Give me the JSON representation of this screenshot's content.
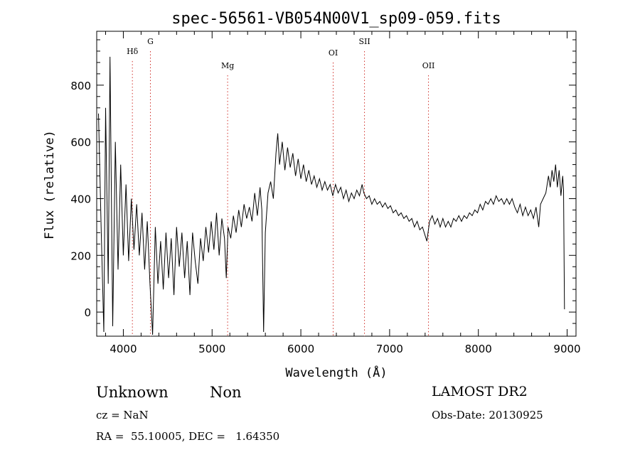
{
  "chart_data": {
    "type": "line",
    "title": "spec-56561-VB054N00V1_sp09-059.fits",
    "xlabel": "Wavelength (Å)",
    "ylabel": "Flux (relative)",
    "xlim": [
      3700,
      9100
    ],
    "ylim": [
      -85,
      990
    ],
    "xticks": [
      4000,
      5000,
      6000,
      7000,
      8000,
      9000
    ],
    "yticks": [
      0,
      200,
      400,
      600,
      800
    ],
    "xtick_labels": [
      "4000",
      "5000",
      "6000",
      "7000",
      "8000",
      "9000"
    ],
    "ytick_labels": [
      "0",
      "200",
      "400",
      "600",
      "800"
    ],
    "lines": [
      {
        "label": "Hδ",
        "wavelength": 4102,
        "label_flux": 910
      },
      {
        "label": "G",
        "wavelength": 4305,
        "label_flux": 945
      },
      {
        "label": "Mg",
        "wavelength": 5175,
        "label_flux": 860
      },
      {
        "label": "OI",
        "wavelength": 6364,
        "label_flux": 905
      },
      {
        "label": "SII",
        "wavelength": 6717,
        "label_flux": 945
      },
      {
        "label": "OII",
        "wavelength": 7438,
        "label_flux": 860
      }
    ],
    "series": [
      {
        "values": [
          [
            3720,
            700
          ],
          [
            3750,
            300
          ],
          [
            3780,
            -70
          ],
          [
            3800,
            720
          ],
          [
            3830,
            100
          ],
          [
            3850,
            900
          ],
          [
            3880,
            -50
          ],
          [
            3910,
            600
          ],
          [
            3940,
            150
          ],
          [
            3970,
            520
          ],
          [
            4000,
            200
          ],
          [
            4030,
            450
          ],
          [
            4060,
            180
          ],
          [
            4090,
            400
          ],
          [
            4120,
            220
          ],
          [
            4150,
            380
          ],
          [
            4180,
            200
          ],
          [
            4210,
            350
          ],
          [
            4240,
            150
          ],
          [
            4270,
            320
          ],
          [
            4300,
            100
          ],
          [
            4330,
            -80
          ],
          [
            4360,
            300
          ],
          [
            4390,
            100
          ],
          [
            4420,
            250
          ],
          [
            4450,
            80
          ],
          [
            4480,
            280
          ],
          [
            4510,
            120
          ],
          [
            4540,
            260
          ],
          [
            4570,
            60
          ],
          [
            4600,
            300
          ],
          [
            4630,
            160
          ],
          [
            4660,
            280
          ],
          [
            4690,
            120
          ],
          [
            4720,
            250
          ],
          [
            4750,
            60
          ],
          [
            4780,
            280
          ],
          [
            4810,
            180
          ],
          [
            4840,
            100
          ],
          [
            4870,
            260
          ],
          [
            4900,
            180
          ],
          [
            4930,
            300
          ],
          [
            4960,
            210
          ],
          [
            4990,
            320
          ],
          [
            5020,
            220
          ],
          [
            5050,
            350
          ],
          [
            5080,
            200
          ],
          [
            5110,
            330
          ],
          [
            5140,
            260
          ],
          [
            5160,
            120
          ],
          [
            5180,
            300
          ],
          [
            5210,
            260
          ],
          [
            5240,
            340
          ],
          [
            5270,
            280
          ],
          [
            5300,
            360
          ],
          [
            5330,
            300
          ],
          [
            5360,
            380
          ],
          [
            5390,
            330
          ],
          [
            5420,
            370
          ],
          [
            5450,
            320
          ],
          [
            5480,
            420
          ],
          [
            5510,
            340
          ],
          [
            5540,
            440
          ],
          [
            5560,
            360
          ],
          [
            5580,
            -70
          ],
          [
            5600,
            280
          ],
          [
            5630,
            420
          ],
          [
            5660,
            460
          ],
          [
            5690,
            400
          ],
          [
            5720,
            560
          ],
          [
            5740,
            630
          ],
          [
            5760,
            520
          ],
          [
            5790,
            600
          ],
          [
            5820,
            500
          ],
          [
            5850,
            580
          ],
          [
            5880,
            510
          ],
          [
            5910,
            560
          ],
          [
            5940,
            480
          ],
          [
            5970,
            540
          ],
          [
            6000,
            470
          ],
          [
            6030,
            520
          ],
          [
            6060,
            460
          ],
          [
            6090,
            500
          ],
          [
            6120,
            450
          ],
          [
            6150,
            480
          ],
          [
            6180,
            440
          ],
          [
            6210,
            470
          ],
          [
            6240,
            430
          ],
          [
            6270,
            460
          ],
          [
            6300,
            430
          ],
          [
            6330,
            450
          ],
          [
            6360,
            410
          ],
          [
            6390,
            450
          ],
          [
            6420,
            420
          ],
          [
            6450,
            440
          ],
          [
            6480,
            400
          ],
          [
            6510,
            430
          ],
          [
            6540,
            390
          ],
          [
            6570,
            420
          ],
          [
            6600,
            400
          ],
          [
            6630,
            430
          ],
          [
            6660,
            410
          ],
          [
            6690,
            450
          ],
          [
            6710,
            420
          ],
          [
            6740,
            400
          ],
          [
            6770,
            410
          ],
          [
            6800,
            380
          ],
          [
            6830,
            400
          ],
          [
            6860,
            380
          ],
          [
            6890,
            390
          ],
          [
            6920,
            370
          ],
          [
            6950,
            385
          ],
          [
            6980,
            365
          ],
          [
            7010,
            375
          ],
          [
            7040,
            350
          ],
          [
            7070,
            360
          ],
          [
            7100,
            340
          ],
          [
            7130,
            350
          ],
          [
            7160,
            330
          ],
          [
            7190,
            340
          ],
          [
            7220,
            320
          ],
          [
            7250,
            330
          ],
          [
            7280,
            300
          ],
          [
            7310,
            320
          ],
          [
            7340,
            290
          ],
          [
            7370,
            300
          ],
          [
            7400,
            270
          ],
          [
            7420,
            250
          ],
          [
            7450,
            320
          ],
          [
            7480,
            340
          ],
          [
            7510,
            310
          ],
          [
            7540,
            330
          ],
          [
            7570,
            300
          ],
          [
            7600,
            330
          ],
          [
            7630,
            300
          ],
          [
            7660,
            320
          ],
          [
            7690,
            300
          ],
          [
            7720,
            330
          ],
          [
            7750,
            320
          ],
          [
            7780,
            340
          ],
          [
            7810,
            320
          ],
          [
            7840,
            340
          ],
          [
            7870,
            330
          ],
          [
            7900,
            350
          ],
          [
            7930,
            340
          ],
          [
            7960,
            360
          ],
          [
            7990,
            350
          ],
          [
            8020,
            380
          ],
          [
            8050,
            360
          ],
          [
            8080,
            390
          ],
          [
            8110,
            380
          ],
          [
            8140,
            400
          ],
          [
            8170,
            380
          ],
          [
            8200,
            410
          ],
          [
            8230,
            390
          ],
          [
            8260,
            400
          ],
          [
            8290,
            380
          ],
          [
            8320,
            400
          ],
          [
            8350,
            380
          ],
          [
            8380,
            400
          ],
          [
            8410,
            370
          ],
          [
            8440,
            350
          ],
          [
            8470,
            380
          ],
          [
            8500,
            340
          ],
          [
            8530,
            370
          ],
          [
            8560,
            340
          ],
          [
            8590,
            360
          ],
          [
            8620,
            330
          ],
          [
            8650,
            370
          ],
          [
            8680,
            300
          ],
          [
            8700,
            380
          ],
          [
            8730,
            400
          ],
          [
            8760,
            420
          ],
          [
            8790,
            480
          ],
          [
            8810,
            440
          ],
          [
            8830,
            500
          ],
          [
            8850,
            460
          ],
          [
            8870,
            520
          ],
          [
            8890,
            440
          ],
          [
            8910,
            500
          ],
          [
            8930,
            410
          ],
          [
            8950,
            480
          ],
          [
            8960,
            430
          ],
          [
            8970,
            10
          ]
        ]
      }
    ]
  },
  "info": {
    "object_class": "Unknown",
    "object_subclass": "Non",
    "survey": "LAMOST DR2",
    "cz": "cz = NaN",
    "obs_date": "Obs-Date: 20130925",
    "coords": "RA =  55.10005, DEC =   1.64350"
  },
  "colors": {
    "axes": "#000000",
    "spectrum": "#000000",
    "line_markers": "#d0302a"
  }
}
